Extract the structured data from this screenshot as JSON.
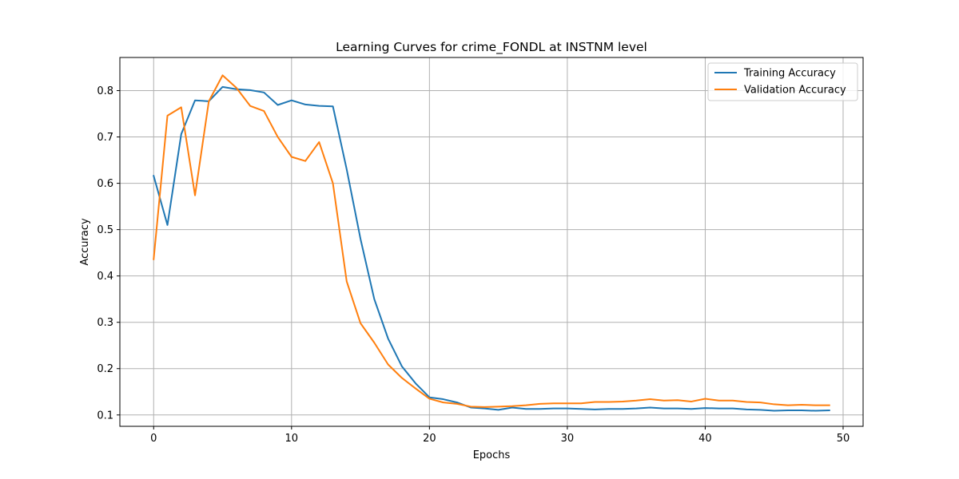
{
  "chart_data": {
    "type": "line",
    "title": "Learning Curves for crime_FONDL at INSTNM level",
    "xlabel": "Epochs",
    "ylabel": "Accuracy",
    "xlim": [
      -2.45,
      51.45
    ],
    "ylim": [
      0.0755,
      0.8715
    ],
    "xticks": [
      0,
      10,
      20,
      30,
      40,
      50
    ],
    "yticks": [
      0.1,
      0.2,
      0.3,
      0.4,
      0.5,
      0.6,
      0.7,
      0.8
    ],
    "grid": true,
    "legend_position": "upper right",
    "x": [
      0,
      1,
      2,
      3,
      4,
      5,
      6,
      7,
      8,
      9,
      10,
      11,
      12,
      13,
      14,
      15,
      16,
      17,
      18,
      19,
      20,
      21,
      22,
      23,
      24,
      25,
      26,
      27,
      28,
      29,
      30,
      31,
      32,
      33,
      34,
      35,
      36,
      37,
      38,
      39,
      40,
      41,
      42,
      43,
      44,
      45,
      46,
      47,
      48,
      49
    ],
    "series": [
      {
        "name": "Training Accuracy",
        "color": "#1f77b4",
        "values": [
          0.616,
          0.51,
          0.706,
          0.779,
          0.777,
          0.808,
          0.803,
          0.801,
          0.796,
          0.769,
          0.779,
          0.77,
          0.767,
          0.766,
          0.63,
          0.48,
          0.35,
          0.265,
          0.205,
          0.168,
          0.138,
          0.134,
          0.127,
          0.116,
          0.114,
          0.111,
          0.116,
          0.113,
          0.113,
          0.114,
          0.114,
          0.113,
          0.112,
          0.113,
          0.113,
          0.114,
          0.116,
          0.114,
          0.114,
          0.113,
          0.115,
          0.114,
          0.114,
          0.112,
          0.111,
          0.109,
          0.11,
          0.11,
          0.109,
          0.11
        ]
      },
      {
        "name": "Validation Accuracy",
        "color": "#ff7f0e",
        "values": [
          0.436,
          0.746,
          0.764,
          0.574,
          0.777,
          0.833,
          0.806,
          0.767,
          0.756,
          0.7,
          0.657,
          0.648,
          0.689,
          0.6,
          0.388,
          0.298,
          0.256,
          0.209,
          0.18,
          0.157,
          0.135,
          0.127,
          0.124,
          0.118,
          0.117,
          0.118,
          0.119,
          0.121,
          0.124,
          0.125,
          0.125,
          0.125,
          0.128,
          0.128,
          0.129,
          0.131,
          0.134,
          0.131,
          0.132,
          0.129,
          0.135,
          0.131,
          0.131,
          0.128,
          0.127,
          0.123,
          0.121,
          0.122,
          0.121,
          0.121
        ]
      }
    ]
  }
}
